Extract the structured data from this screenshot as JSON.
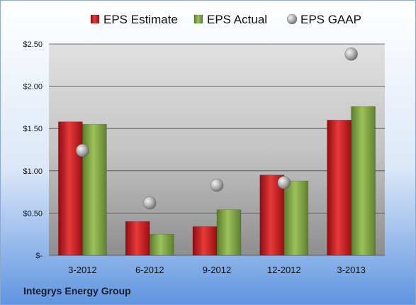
{
  "chart_data": {
    "type": "bar",
    "categories": [
      "3-2012",
      "6-2012",
      "9-2012",
      "12-2012",
      "3-2013"
    ],
    "series": [
      {
        "name": "EPS Estimate",
        "type": "bar",
        "color": "#c0141c",
        "values": [
          1.58,
          0.4,
          0.34,
          0.95,
          1.6
        ]
      },
      {
        "name": "EPS Actual",
        "type": "bar",
        "color": "#7aa040",
        "values": [
          1.55,
          0.25,
          0.54,
          0.88,
          1.76
        ]
      },
      {
        "name": "EPS GAAP",
        "type": "scatter",
        "color": "#a8a8a8",
        "values": [
          1.24,
          0.62,
          0.83,
          0.86,
          2.38
        ]
      }
    ],
    "y_ticks": [
      0,
      0.5,
      1.0,
      1.5,
      2.0,
      2.5
    ],
    "y_tick_labels": [
      "$-",
      "$0.50",
      "$1.00",
      "$1.50",
      "$2.00",
      "$2.50"
    ],
    "ylim": [
      0,
      2.5
    ],
    "grid": true,
    "legend": "top"
  },
  "footer": {
    "company": "Integrys Energy Group"
  }
}
